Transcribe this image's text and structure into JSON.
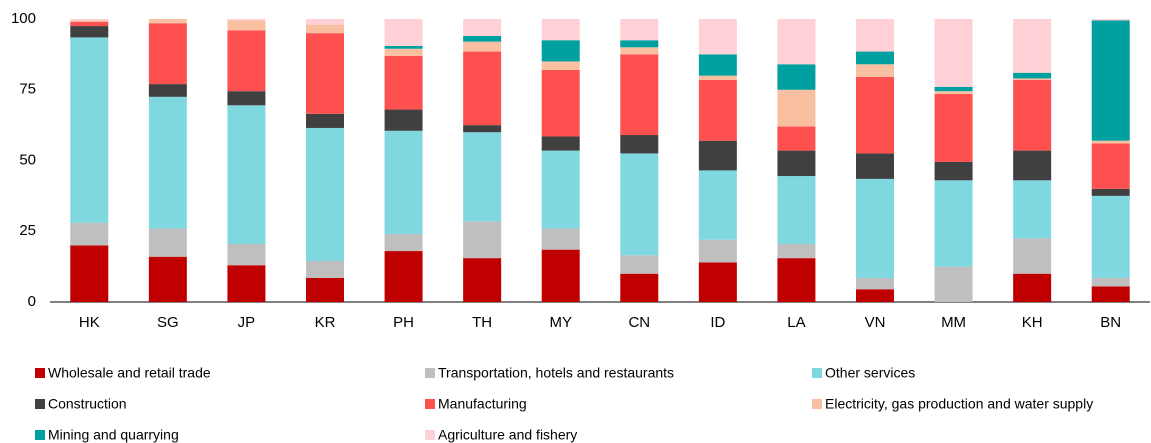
{
  "chart_data": {
    "type": "stacked_bar",
    "categories": [
      "HK",
      "SG",
      "JP",
      "KR",
      "PH",
      "TH",
      "MY",
      "CN",
      "ID",
      "LA",
      "VN",
      "MM",
      "KH",
      "BN"
    ],
    "ylim": [
      0,
      100
    ],
    "yticks": [
      0,
      25,
      50,
      75,
      100
    ],
    "series": [
      {
        "name": "Wholesale and retail trade",
        "color": "#c00000",
        "values": [
          20,
          16,
          13,
          8.5,
          18,
          15.5,
          18.5,
          10,
          14,
          15.5,
          4.5,
          0,
          10,
          5.5
        ]
      },
      {
        "name": "Transportation, hotels and restaurants",
        "color": "#bfbfbf",
        "values": [
          8,
          10,
          7.5,
          6,
          6,
          13,
          7.5,
          6.5,
          8,
          5,
          4,
          12.5,
          12.5,
          3
        ]
      },
      {
        "name": "Other services",
        "color": "#7fd8e0",
        "values": [
          65.5,
          46.5,
          49,
          47,
          36.5,
          31.5,
          27.5,
          36,
          24.5,
          24,
          35,
          30.5,
          20.5,
          29
        ]
      },
      {
        "name": "Construction",
        "color": "#404040",
        "values": [
          4,
          4.5,
          5,
          5,
          7.5,
          2.5,
          5,
          6.5,
          10.5,
          9,
          9,
          6.5,
          10.5,
          2.5
        ]
      },
      {
        "name": "Manufacturing",
        "color": "#ff5050",
        "values": [
          1.5,
          21.5,
          21.5,
          28.5,
          19,
          26,
          23.5,
          28.5,
          21.5,
          8.5,
          27,
          24,
          25,
          16
        ]
      },
      {
        "name": "Electricity, gas production and water supply",
        "color": "#f8c0a0",
        "values": [
          0.5,
          1.5,
          3.5,
          3,
          2.5,
          3.5,
          3,
          2.5,
          1.5,
          13,
          4.5,
          1,
          0.5,
          1
        ]
      },
      {
        "name": "Mining and quarrying",
        "color": "#00a0a0",
        "values": [
          0,
          0,
          0,
          0,
          1,
          2,
          7.5,
          2.5,
          7.5,
          9,
          4.5,
          1.5,
          2,
          42.5
        ]
      },
      {
        "name": "Agriculture and fishery",
        "color": "#ffd0d5",
        "values": [
          0.5,
          0,
          0.5,
          2,
          9.5,
          6,
          7.5,
          7.5,
          12.5,
          16,
          11.5,
          24,
          19,
          0.5
        ]
      }
    ]
  }
}
